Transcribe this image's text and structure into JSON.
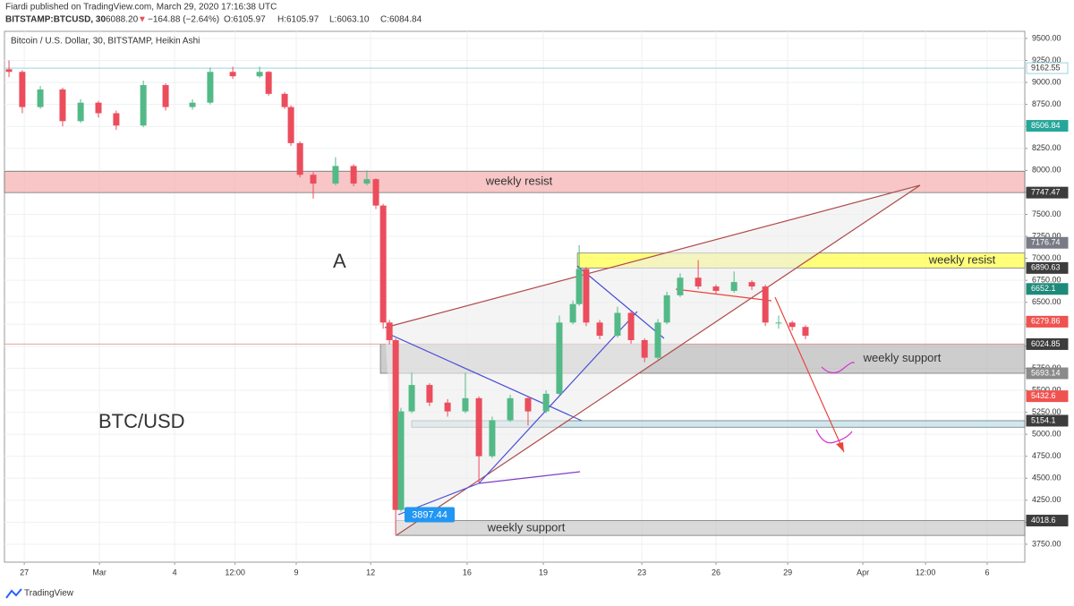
{
  "header": {
    "publisher": "Fiardi published on TradingView.com, March 29, 2020 17:16:38 UTC",
    "symbol": "BITSTAMP:BTCUSD, 30",
    "last": "6088.20",
    "arrow": "▼",
    "change": "−164.88 (−2.64%)",
    "open": "O:6105.97",
    "high": "H:6105.97",
    "low": "L:6063.10",
    "close": "C:6084.84"
  },
  "chart_data": {
    "type": "candlestick",
    "title": "Bitcoin / U.S. Dollar, 30, BITSTAMP, Heikin Ashi",
    "up_color": "#53b987",
    "down_color": "#eb4d5c",
    "xlim": [
      0,
      40.71
    ],
    "xticks": [
      {
        "value": 0.79,
        "label": "27"
      },
      {
        "value": 3.79,
        "label": "Mar"
      },
      {
        "value": 6.79,
        "label": "4"
      },
      {
        "value": 9.2,
        "label": "12:00"
      },
      {
        "value": 11.64,
        "label": "9"
      },
      {
        "value": 14.61,
        "label": "12"
      },
      {
        "value": 18.46,
        "label": "16"
      },
      {
        "value": 21.5,
        "label": "19"
      },
      {
        "value": 25.43,
        "label": "23"
      },
      {
        "value": 28.39,
        "label": "26"
      },
      {
        "value": 31.25,
        "label": "29"
      },
      {
        "value": 34.25,
        "label": "Apr"
      },
      {
        "value": 36.75,
        "label": "12:00"
      },
      {
        "value": 39.21,
        "label": "6"
      }
    ],
    "ylim": [
      3546,
      9581
    ],
    "yticks": [
      {
        "value": 3750,
        "label": "3750.00"
      },
      {
        "value": 4000,
        "label": "4000.00"
      },
      {
        "value": 4250,
        "label": "4250.00"
      },
      {
        "value": 4500,
        "label": "4500.00"
      },
      {
        "value": 4750,
        "label": "4750.00"
      },
      {
        "value": 5000,
        "label": "5000.00"
      },
      {
        "value": 5250,
        "label": "5250.00"
      },
      {
        "value": 5500,
        "label": "5500.00"
      },
      {
        "value": 5750,
        "label": "5750.00"
      },
      {
        "value": 6000,
        "label": "6000.00"
      },
      {
        "value": 6250,
        "label": "6250.00"
      },
      {
        "value": 6500,
        "label": "6500.00"
      },
      {
        "value": 6750,
        "label": "6750.00"
      },
      {
        "value": 7000,
        "label": "7000.00"
      },
      {
        "value": 7250,
        "label": "7250.00"
      },
      {
        "value": 7500,
        "label": "7500.00"
      },
      {
        "value": 7750,
        "label": "7750.00"
      },
      {
        "value": 8000,
        "label": "8000.00"
      },
      {
        "value": 8250,
        "label": "8250.00"
      },
      {
        "value": 8500,
        "label": "8500.00"
      },
      {
        "value": 8750,
        "label": "8750.00"
      },
      {
        "value": 9000,
        "label": "9000.00"
      },
      {
        "value": 9250,
        "label": "9250.00"
      },
      {
        "value": 9500,
        "label": "9500.00"
      }
    ],
    "grid": true,
    "x": [
      0.18,
      0.71,
      1.43,
      2.32,
      3.04,
      3.75,
      4.46,
      5.54,
      6.43,
      7.5,
      8.21,
      9.11,
      10.18,
      10.54,
      11.18,
      11.43,
      11.79,
      12.32,
      13.21,
      13.93,
      14.46,
      14.82,
      15.11,
      15.36,
      15.61,
      15.82,
      16.25,
      16.96,
      17.68,
      18.39,
      18.93,
      19.46,
      20.18,
      20.89,
      21.61,
      22.14,
      22.68,
      22.93,
      23.21,
      23.75,
      24.46,
      25,
      25.54,
      26.07,
      26.43,
      26.96,
      27.68,
      28.39,
      29.11,
      29.82,
      30.36,
      30.89,
      31.43,
      31.96
    ],
    "ohlc": [
      [
        9150,
        9250,
        9060,
        9120
      ],
      [
        9120,
        9140,
        8650,
        8720
      ],
      [
        8720,
        8960,
        8700,
        8920
      ],
      [
        8920,
        8940,
        8500,
        8560
      ],
      [
        8560,
        8810,
        8540,
        8770
      ],
      [
        8770,
        8790,
        8600,
        8650
      ],
      [
        8650,
        8680,
        8460,
        8510
      ],
      [
        8510,
        9020,
        8490,
        8970
      ],
      [
        8970,
        8990,
        8680,
        8720
      ],
      [
        8720,
        8810,
        8690,
        8770
      ],
      [
        8770,
        9170,
        8750,
        9120
      ],
      [
        9120,
        9180,
        9040,
        9070
      ],
      [
        9070,
        9180,
        9050,
        9120
      ],
      [
        9120,
        9130,
        8850,
        8870
      ],
      [
        8870,
        8890,
        8700,
        8720
      ],
      [
        8720,
        8740,
        8280,
        8310
      ],
      [
        8310,
        8330,
        7920,
        7950
      ],
      [
        7950,
        7980,
        7680,
        7850
      ],
      [
        7850,
        8150,
        7830,
        8050
      ],
      [
        8050,
        8070,
        7820,
        7850
      ],
      [
        7850,
        8000,
        7830,
        7900
      ],
      [
        7900,
        7910,
        7560,
        7600
      ],
      [
        7600,
        7620,
        6200,
        6270
      ],
      [
        6270,
        6300,
        6020,
        6070
      ],
      [
        6070,
        6090,
        3860,
        4140
      ],
      [
        4140,
        5300,
        4120,
        5260
      ],
      [
        5260,
        5700,
        5240,
        5560
      ],
      [
        5560,
        5580,
        5320,
        5360
      ],
      [
        5360,
        5400,
        5200,
        5260
      ],
      [
        5260,
        5700,
        5240,
        5410
      ],
      [
        5410,
        5430,
        4450,
        4750
      ],
      [
        4750,
        5200,
        4730,
        5160
      ],
      [
        5160,
        5450,
        5140,
        5410
      ],
      [
        5410,
        5430,
        5100,
        5260
      ],
      [
        5260,
        5500,
        5240,
        5460
      ],
      [
        5460,
        6350,
        5440,
        6270
      ],
      [
        6270,
        6520,
        6250,
        6480
      ],
      [
        6480,
        7150,
        6460,
        6880
      ],
      [
        6880,
        6900,
        6230,
        6270
      ],
      [
        6270,
        6300,
        6080,
        6120
      ],
      [
        6120,
        6450,
        6100,
        6380
      ],
      [
        6380,
        6400,
        6030,
        6070
      ],
      [
        6070,
        6090,
        5820,
        5870
      ],
      [
        5870,
        6310,
        5850,
        6270
      ],
      [
        6270,
        6620,
        6250,
        6580
      ],
      [
        6580,
        6830,
        6560,
        6780
      ],
      [
        6780,
        6980,
        6650,
        6680
      ],
      [
        6680,
        6700,
        6600,
        6630
      ],
      [
        6630,
        6850,
        6610,
        6730
      ],
      [
        6730,
        6750,
        6640,
        6680
      ],
      [
        6680,
        6700,
        6230,
        6270
      ],
      [
        6270,
        6350,
        6200,
        6270
      ],
      [
        6270,
        6290,
        6180,
        6220
      ],
      [
        6220,
        6240,
        6080,
        6120
      ]
    ],
    "zones": [
      {
        "label": "weekly resist",
        "x0": 0,
        "low": 7747.47,
        "high": 7990,
        "color": "#f4a7a7"
      },
      {
        "label": "weekly resist",
        "x0": 22.86,
        "low": 6890.63,
        "high": 7060,
        "color": "#ffff33"
      },
      {
        "label": "weekly support",
        "x0": 15,
        "low": 5693.14,
        "high": 6024.85,
        "color": "#b2b2b2"
      },
      {
        "x0": 16.25,
        "low": 5080,
        "high": 5154.1,
        "color": "#b5dbe8"
      },
      {
        "label": "weekly support",
        "x0": 15.61,
        "low": 3850,
        "high": 4018.6,
        "color": "#c4c4c4"
      }
    ],
    "price_tags": [
      {
        "value": 9162.55,
        "color": "#ffffff",
        "line": "#9ad3e0"
      },
      {
        "value": 8506.84,
        "color": "#26a69a"
      },
      {
        "value": 7747.47,
        "color": "#3c3c3c"
      },
      {
        "value": 7176.74,
        "color": "#787b86"
      },
      {
        "value": 6890.63,
        "color": "#3c3c3c"
      },
      {
        "value": 6652.1,
        "color": "#1e8a7a"
      },
      {
        "value": 6279.86,
        "color": "#ef5350"
      },
      {
        "value": 6024.85,
        "color": "#3c3c3c",
        "line": "#e6a0a0"
      },
      {
        "value": 5693.14,
        "color": "#8a8a8a"
      },
      {
        "value": 5432.6,
        "color": "#ef5350"
      },
      {
        "value": 5154.1,
        "color": "#3c3c3c"
      },
      {
        "value": 4018.6,
        "color": "#3c3c3c"
      }
    ],
    "callout": 3897.44,
    "annotations": [
      "A",
      "BTC/USD"
    ]
  },
  "footer": "TradingView"
}
